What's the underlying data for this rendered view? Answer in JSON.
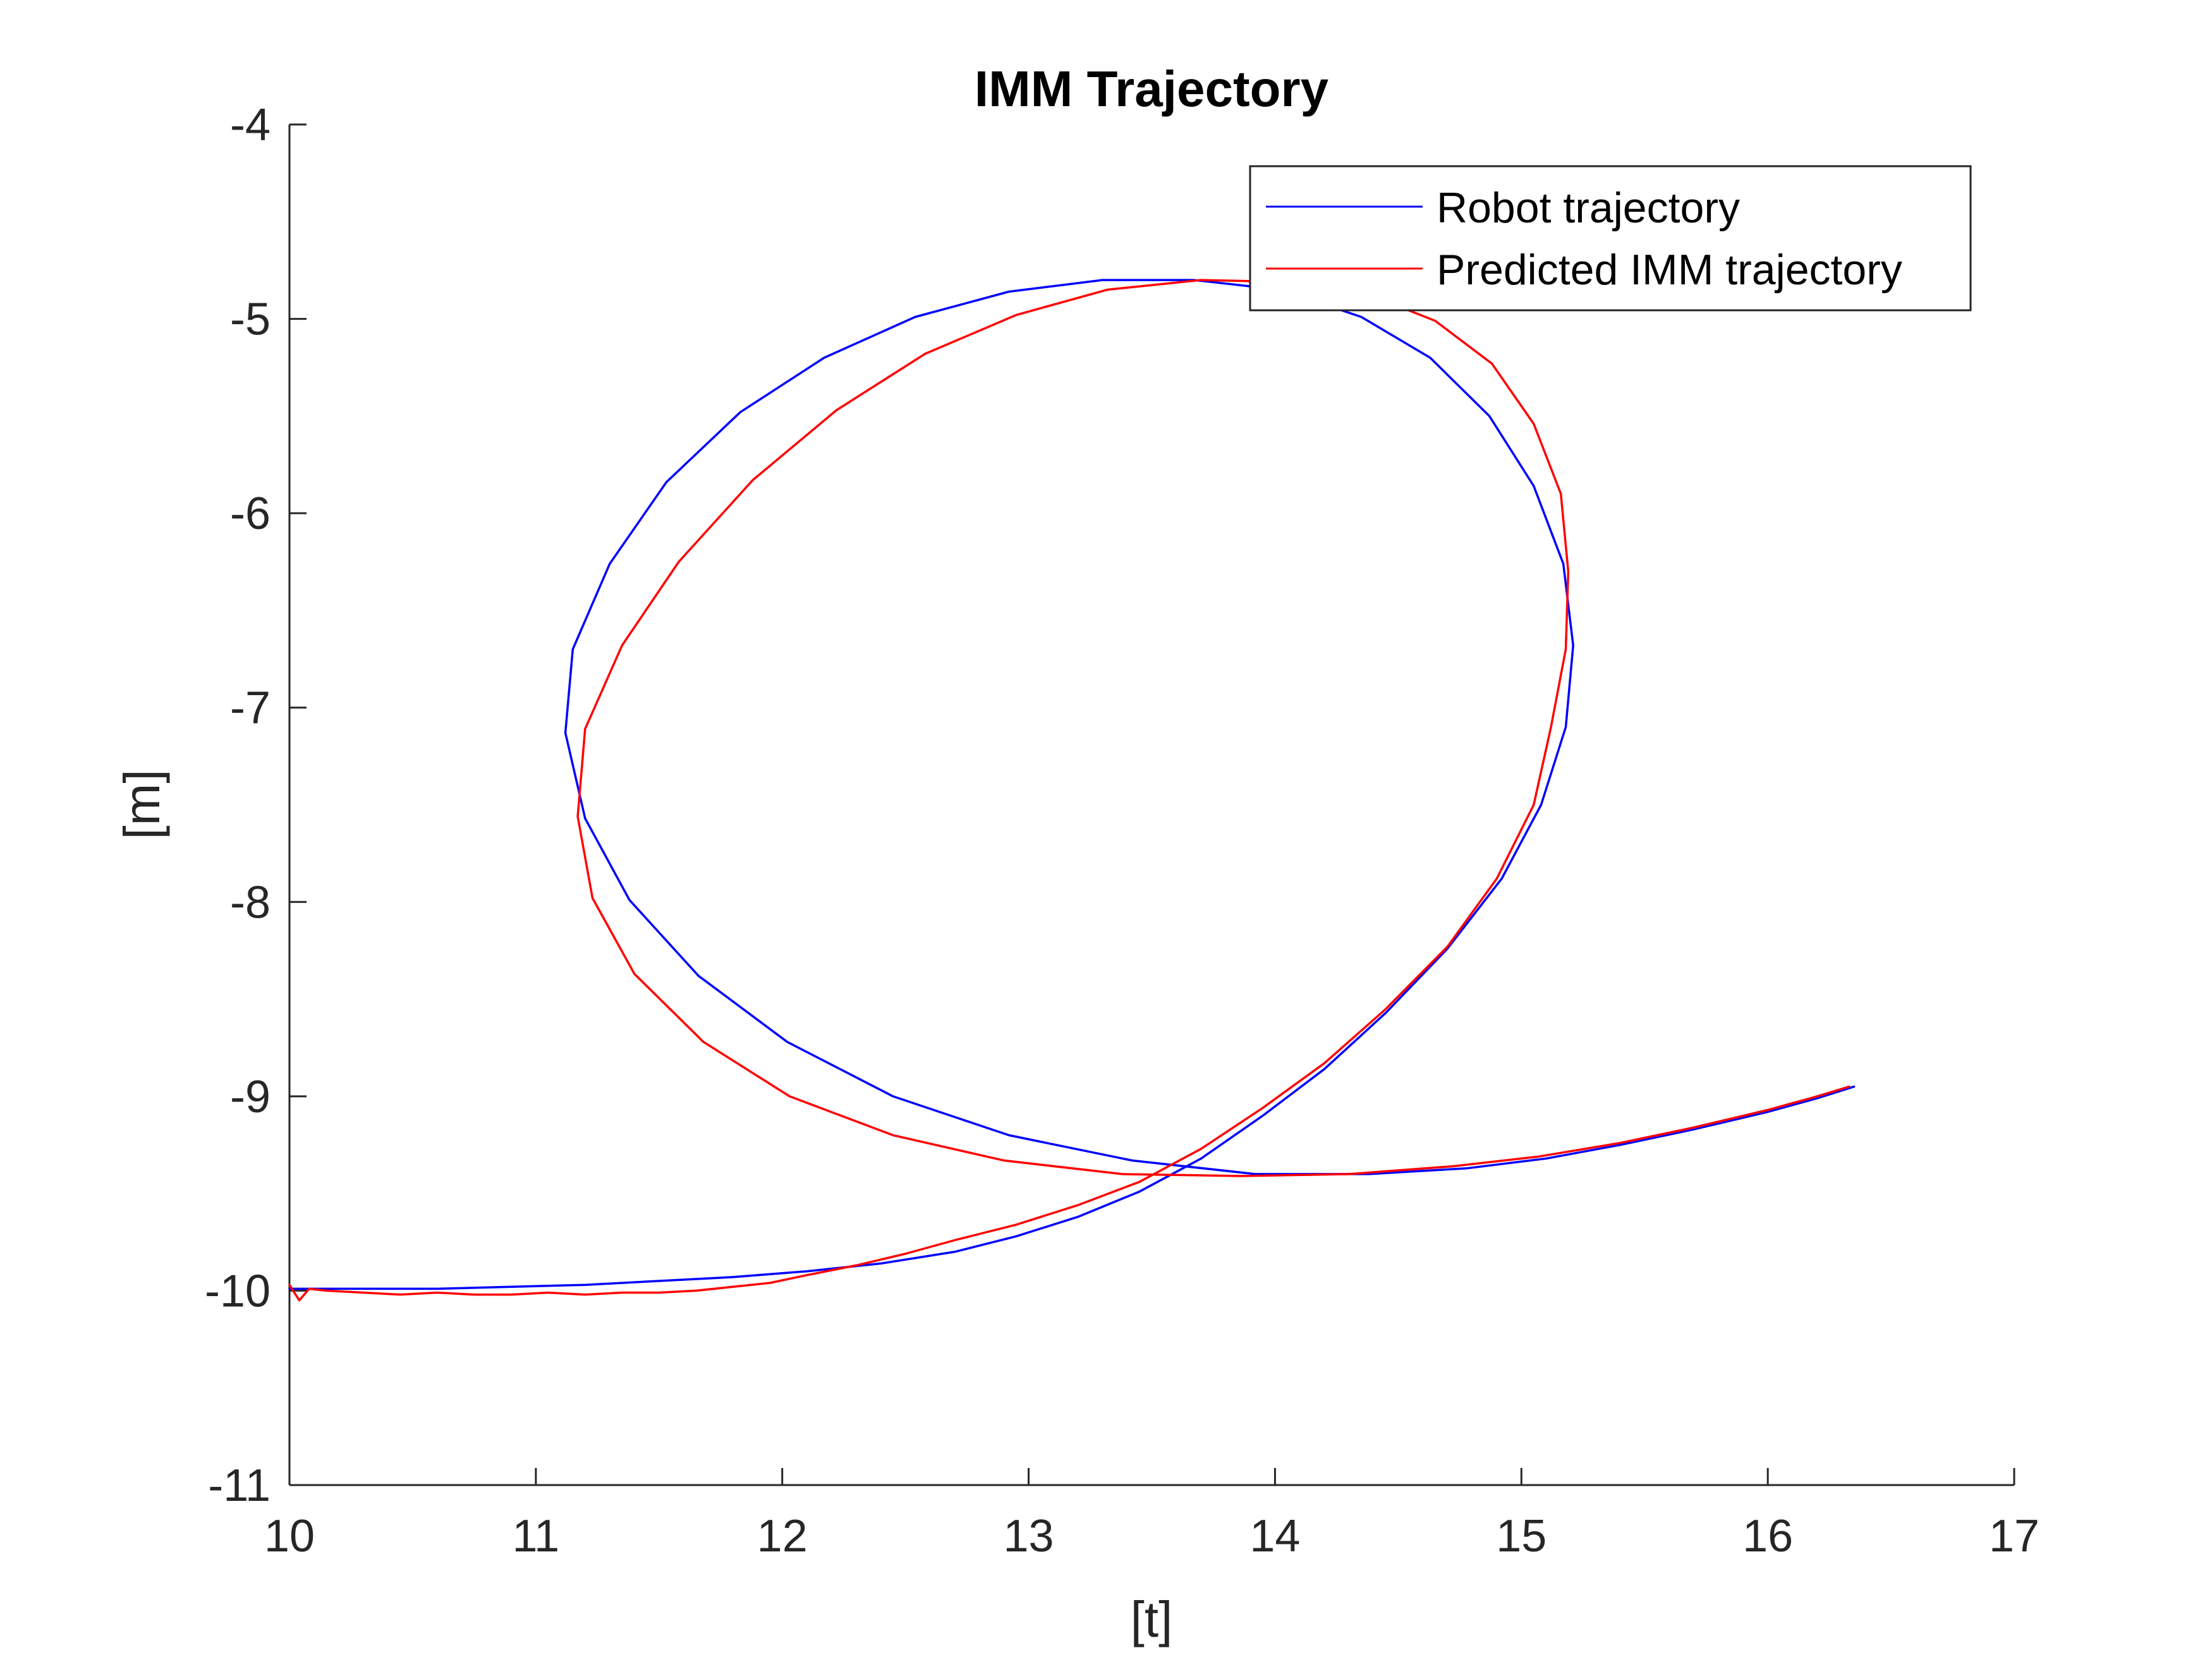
{
  "chart_data": {
    "type": "line",
    "title": "IMM Trajectory",
    "xlabel": "[t]",
    "ylabel": "[m]",
    "xlim": [
      10,
      17
    ],
    "ylim": [
      -11,
      -4
    ],
    "xticks": [
      10,
      11,
      12,
      13,
      14,
      15,
      16,
      17
    ],
    "yticks": [
      -4,
      -5,
      -6,
      -7,
      -8,
      -9,
      -10,
      -11
    ],
    "grid": false,
    "legend_position": "top-right",
    "series": [
      {
        "name": "Robot trajectory",
        "color": "#0000ff",
        "x": [
          10.0,
          10.3,
          10.6,
          10.9,
          11.2,
          11.5,
          11.8,
          12.1,
          12.4,
          12.7,
          12.95,
          13.2,
          13.45,
          13.7,
          13.95,
          14.2,
          14.45,
          14.7,
          14.92,
          15.08,
          15.18,
          15.21,
          15.17,
          15.05,
          14.87,
          14.63,
          14.35,
          14.02,
          13.67,
          13.3,
          12.92,
          12.54,
          12.17,
          11.83,
          11.53,
          11.3,
          11.15,
          11.12,
          11.2,
          11.38,
          11.66,
          12.02,
          12.45,
          12.92,
          13.42,
          13.92,
          14.38,
          14.78,
          15.1,
          15.4,
          15.7,
          16.0,
          16.2,
          16.35
        ],
        "y": [
          -9.99,
          -9.99,
          -9.99,
          -9.98,
          -9.97,
          -9.95,
          -9.93,
          -9.9,
          -9.86,
          -9.8,
          -9.72,
          -9.62,
          -9.49,
          -9.32,
          -9.1,
          -8.86,
          -8.57,
          -8.24,
          -7.88,
          -7.5,
          -7.1,
          -6.68,
          -6.26,
          -5.86,
          -5.5,
          -5.2,
          -4.99,
          -4.85,
          -4.8,
          -4.8,
          -4.86,
          -4.99,
          -5.2,
          -5.48,
          -5.84,
          -6.26,
          -6.7,
          -7.13,
          -7.57,
          -7.99,
          -8.38,
          -8.72,
          -9.0,
          -9.2,
          -9.33,
          -9.4,
          -9.4,
          -9.37,
          -9.32,
          -9.25,
          -9.17,
          -9.08,
          -9.01,
          -8.95
        ]
      },
      {
        "name": "Predicted IMM trajectory",
        "color": "#ff0000",
        "x": [
          10.0,
          10.04,
          10.08,
          10.15,
          10.3,
          10.45,
          10.6,
          10.75,
          10.9,
          11.05,
          11.2,
          11.35,
          11.5,
          11.65,
          11.8,
          11.95,
          12.1,
          12.3,
          12.5,
          12.7,
          12.95,
          13.2,
          13.45,
          13.7,
          13.95,
          14.2,
          14.45,
          14.7,
          14.9,
          15.05,
          15.12,
          15.18,
          15.19,
          15.16,
          15.05,
          14.88,
          14.65,
          14.37,
          14.05,
          13.7,
          13.32,
          12.95,
          12.58,
          12.22,
          11.88,
          11.58,
          11.35,
          11.2,
          11.17,
          11.23,
          11.4,
          11.68,
          12.03,
          12.45,
          12.9,
          13.38,
          13.86,
          14.3,
          14.72,
          15.07,
          15.4,
          15.7,
          16.0,
          16.2,
          16.33
        ],
        "y": [
          -9.97,
          -10.05,
          -9.99,
          -10.0,
          -10.01,
          -10.02,
          -10.01,
          -10.02,
          -10.02,
          -10.01,
          -10.02,
          -10.01,
          -10.01,
          -10.0,
          -9.98,
          -9.96,
          -9.92,
          -9.87,
          -9.81,
          -9.74,
          -9.66,
          -9.56,
          -9.44,
          -9.27,
          -9.06,
          -8.83,
          -8.55,
          -8.23,
          -7.88,
          -7.5,
          -7.1,
          -6.7,
          -6.3,
          -5.9,
          -5.54,
          -5.23,
          -5.01,
          -4.87,
          -4.81,
          -4.8,
          -4.85,
          -4.98,
          -5.18,
          -5.47,
          -5.83,
          -6.25,
          -6.68,
          -7.11,
          -7.56,
          -7.98,
          -8.37,
          -8.72,
          -9.0,
          -9.2,
          -9.33,
          -9.4,
          -9.41,
          -9.4,
          -9.36,
          -9.31,
          -9.24,
          -9.16,
          -9.07,
          -9.0,
          -8.95
        ]
      }
    ]
  }
}
